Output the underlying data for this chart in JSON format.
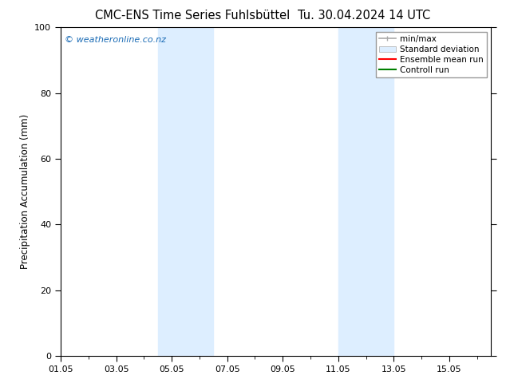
{
  "title_left": "CMC-ENS Time Series Fuhlsbüttel",
  "title_right": "Tu. 30.04.2024 14 UTC",
  "ylabel": "Precipitation Accumulation (mm)",
  "ylim": [
    0,
    100
  ],
  "yticks": [
    0,
    20,
    40,
    60,
    80,
    100
  ],
  "xlim": [
    0,
    15.5
  ],
  "xtick_labels": [
    "01.05",
    "03.05",
    "05.05",
    "07.05",
    "09.05",
    "11.05",
    "13.05",
    "15.05"
  ],
  "xtick_positions": [
    0,
    2,
    4,
    6,
    8,
    10,
    12,
    14
  ],
  "shaded_bands": [
    {
      "x_start": 3.5,
      "x_end": 5.5,
      "color": "#ddeeff",
      "alpha": 1.0
    },
    {
      "x_start": 10.0,
      "x_end": 12.0,
      "color": "#ddeeff",
      "alpha": 1.0
    }
  ],
  "legend_entries": [
    {
      "label": "min/max",
      "type": "minmax",
      "color": "#aaaaaa"
    },
    {
      "label": "Standard deviation",
      "type": "patch",
      "facecolor": "#ddeeff",
      "edgecolor": "#aaaaaa"
    },
    {
      "label": "Ensemble mean run",
      "type": "line",
      "color": "red",
      "linewidth": 1.5
    },
    {
      "label": "Controll run",
      "type": "line",
      "color": "green",
      "linewidth": 1.5
    }
  ],
  "watermark_text": "© weatheronline.co.nz",
  "watermark_color": "#1a6bb5",
  "background_color": "#ffffff",
  "plot_bg_color": "#ffffff",
  "title_fontsize": 10.5,
  "label_fontsize": 8.5,
  "tick_fontsize": 8,
  "legend_fontsize": 7.5
}
